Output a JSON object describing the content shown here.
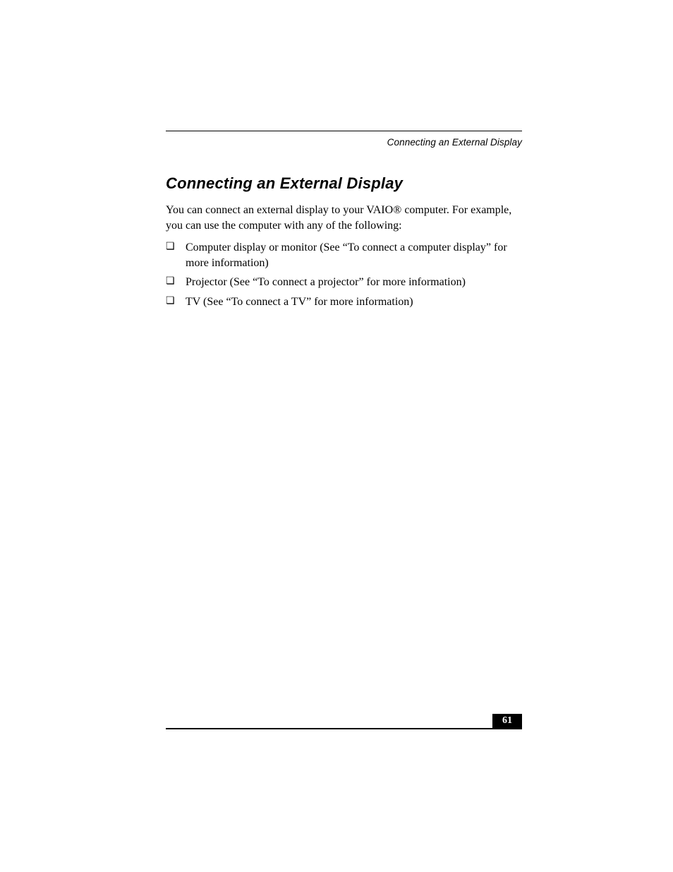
{
  "runningHead": "Connecting an External Display",
  "heading": "Connecting an External Display",
  "intro": "You can connect an external display to your VAIO® computer. For example, you can use the computer with any of the following:",
  "bullets": [
    "Computer display or monitor (See “To connect a computer display” for more information)",
    "Projector (See “To connect a projector” for more information)",
    "TV (See “To connect a TV” for more information)"
  ],
  "pageNumber": "61",
  "styles": {
    "pageWidth": 954,
    "pageHeight": 1235,
    "contentLeft": 235,
    "contentTop": 185,
    "contentWidth": 505,
    "footerTop": 1013,
    "background": "#ffffff",
    "textColor": "#000000",
    "ruleColor": "#000000",
    "pageNumberBg": "#000000",
    "pageNumberFg": "#ffffff",
    "headingFontFamily": "Arial",
    "headingFontSize": 22,
    "headingFontWeight": "bold",
    "headingFontStyle": "italic",
    "runningHeadFontFamily": "Arial",
    "runningHeadFontStyle": "italic",
    "runningHeadFontSize": 13.5,
    "bodyFontFamily": "Times New Roman",
    "bodyFontSize": 16,
    "bulletGlyph": "❏",
    "topRuleWeight": 1.5,
    "bottomRuleWeight": 2
  }
}
